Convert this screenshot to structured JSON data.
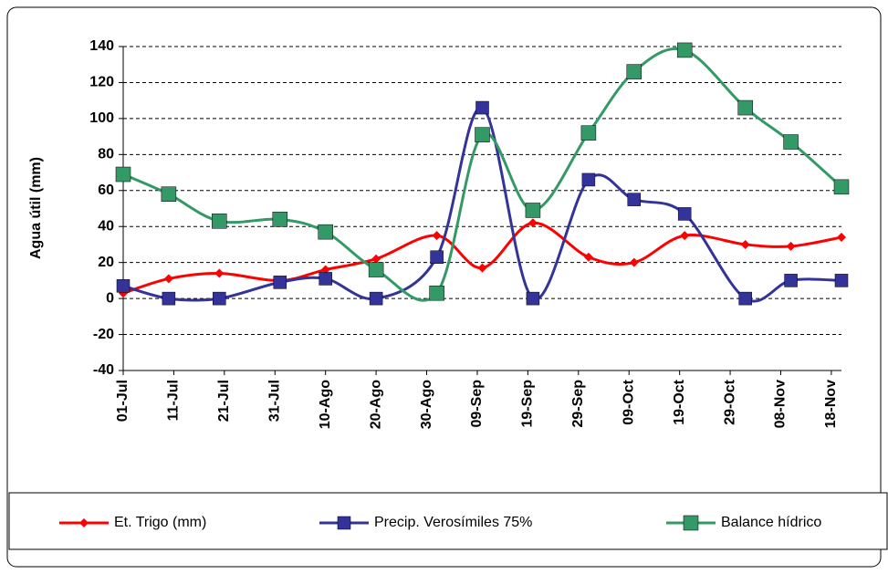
{
  "chart_data": {
    "type": "line",
    "y_label": "Agua útil (mm)",
    "x": [
      0,
      9,
      19,
      31,
      40,
      50,
      62,
      71,
      81,
      92,
      101,
      111,
      123,
      132,
      142
    ],
    "xlim": [
      0,
      142
    ],
    "xticks": [
      {
        "value": 0,
        "label": "01-Jul"
      },
      {
        "value": 10,
        "label": "11-Jul"
      },
      {
        "value": 20,
        "label": "21-Jul"
      },
      {
        "value": 30,
        "label": "31-Jul"
      },
      {
        "value": 40,
        "label": "10-Ago"
      },
      {
        "value": 50,
        "label": "20-Ago"
      },
      {
        "value": 60,
        "label": "30-Ago"
      },
      {
        "value": 70,
        "label": "09-Sep"
      },
      {
        "value": 80,
        "label": "19-Sep"
      },
      {
        "value": 90,
        "label": "29-Sep"
      },
      {
        "value": 100,
        "label": "09-Oct"
      },
      {
        "value": 110,
        "label": "19-Oct"
      },
      {
        "value": 120,
        "label": "29-Oct"
      },
      {
        "value": 130,
        "label": "08-Nov"
      },
      {
        "value": 140,
        "label": "18-Nov"
      }
    ],
    "ylim": [
      -40,
      140
    ],
    "yticks": [
      -40,
      -20,
      0,
      20,
      40,
      60,
      80,
      100,
      120,
      140
    ],
    "grid": true,
    "legend": "bottom",
    "series": [
      {
        "name": "Et. Trigo (mm)",
        "color": "#ff0000",
        "marker": "diamond",
        "values": [
          3,
          11,
          14,
          10,
          16,
          22,
          35,
          17,
          42,
          23,
          20,
          35,
          30,
          29,
          34
        ]
      },
      {
        "name": "Precip. Verosímiles 75%",
        "color": "#333399",
        "marker": "square",
        "values": [
          7,
          0,
          0,
          9,
          11,
          0,
          23,
          106,
          0,
          66,
          55,
          47,
          0,
          10,
          10
        ]
      },
      {
        "name": "Balance hídrico",
        "color": "#339966",
        "marker": "square",
        "values": [
          69,
          58,
          43,
          44,
          37,
          16,
          3,
          91,
          49,
          92,
          126,
          138,
          106,
          87,
          62
        ]
      }
    ]
  }
}
